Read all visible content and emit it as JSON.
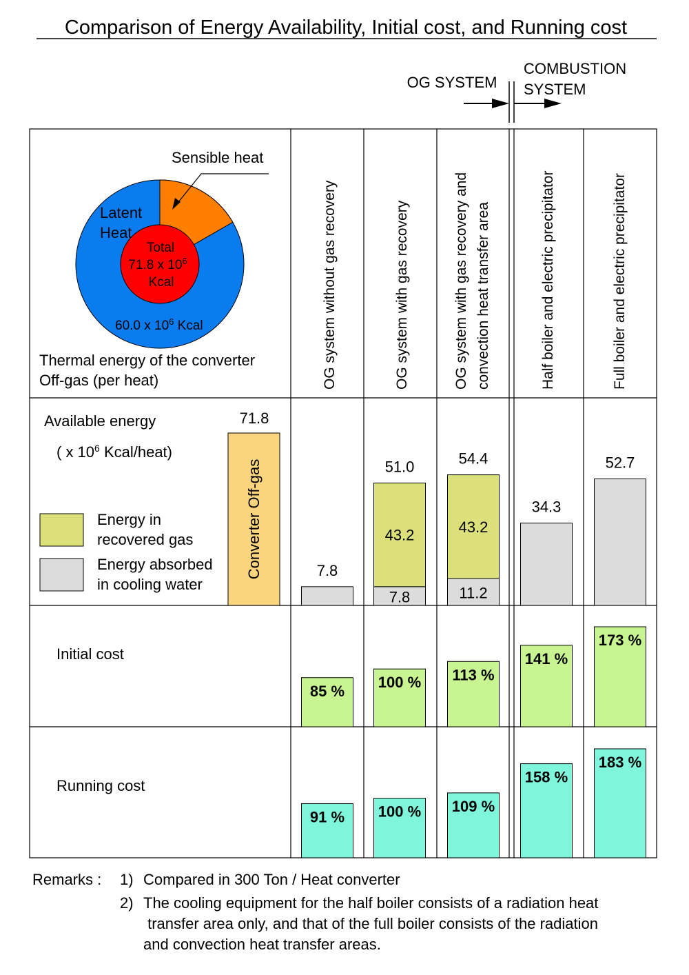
{
  "title": "Comparison of Energy Availability, Initial cost, and Running cost",
  "system_labels": {
    "og": "OG SYSTEM",
    "combustion_line1": "COMBUSTION",
    "combustion_line2": "SYSTEM"
  },
  "pie": {
    "sensible_label": "Sensible heat",
    "latent_line1": "Latent",
    "latent_line2": "Heat",
    "total_line1": "Total",
    "total_line2": "71.8 x 10",
    "total_exp": "6",
    "total_line3": "Kcal",
    "latent_value": "60.0  x 10",
    "latent_exp": "6",
    "latent_unit": " Kcal",
    "caption_line1": "Thermal energy of the converter",
    "caption_line2": "Off-gas (per heat)",
    "colors": {
      "latent": "#0b7cf0",
      "sensible": "#ff7f00",
      "total": "#ff0000"
    }
  },
  "columns": [
    "OG system without gas recovery",
    "OG system with gas recovery",
    "OG system with gas recovery and|convection heat transfer area",
    "Half boiler and electric precipitator",
    "Full boiler and electric precipitator"
  ],
  "energy_panel": {
    "label": "Available energy",
    "unit_prefix": "( x 10",
    "unit_exp": "6",
    "unit_suffix": " Kcal/heat)",
    "legend_gas_line1": "Energy in",
    "legend_gas_line2": "recovered gas",
    "legend_water_line1": "Energy absorbed",
    "legend_water_line2": "in cooling water",
    "offgas_label": "Converter  Off-gas",
    "offgas_value": "71.8",
    "colors": {
      "gas": "#dbe07a",
      "water": "#dcdcdc",
      "offgas": "#fbd47e"
    }
  },
  "initial_cost_label": "Initial cost",
  "running_cost_label": "Running cost",
  "cost_colors": {
    "initial": "#c8f591",
    "running": "#7ff5dc"
  },
  "remarks": {
    "label": "Remarks :",
    "item1_num": "1)",
    "item1": "Compared in 300 Ton / Heat converter",
    "item2_num": "2)",
    "item2_line1": "The cooling equipment for the half boiler consists of  a radiation heat",
    "item2_line2": " transfer area only, and that of the full boiler consists of the radiation",
    "item2_line3": "and convection heat transfer areas."
  },
  "chart_data": [
    {
      "type": "bar",
      "title": "Available energy",
      "ylabel": "( x 10^6 Kcal/heat)",
      "categories": [
        "OG system without gas recovery",
        "OG system with gas recovery",
        "OG system with gas recovery and convection heat transfer area",
        "Half boiler and electric precipitator",
        "Full boiler and electric precipitator"
      ],
      "series": [
        {
          "name": "Energy absorbed in cooling water",
          "values": [
            7.8,
            7.8,
            11.2,
            34.3,
            52.7
          ]
        },
        {
          "name": "Energy in recovered gas",
          "values": [
            0,
            43.2,
            43.2,
            0,
            0
          ]
        }
      ],
      "totals": [
        7.8,
        51.0,
        54.4,
        34.3,
        52.7
      ],
      "value_labels": {
        "totals": [
          "7.8",
          "51.0",
          "54.4",
          "34.3",
          "52.7"
        ],
        "water": [
          "",
          "7.8",
          "11.2",
          "",
          ""
        ],
        "gas": [
          "",
          "43.2",
          "43.2",
          "",
          ""
        ]
      },
      "reference": {
        "name": "Converter  Off-gas",
        "value": 71.8,
        "value_label": "71.8"
      },
      "ylim": [
        0,
        72
      ]
    },
    {
      "type": "bar",
      "title": "Initial cost",
      "categories": [
        "OG system without gas recovery",
        "OG system with gas recovery",
        "OG system with gas recovery and convection heat transfer area",
        "Half boiler and electric precipitator",
        "Full boiler and electric precipitator"
      ],
      "values": [
        85,
        100,
        113,
        141,
        173
      ],
      "labels": [
        "85 %",
        "100 %",
        "113 %",
        "141 %",
        "173 %"
      ],
      "ylim": [
        0,
        173
      ]
    },
    {
      "type": "bar",
      "title": "Running cost",
      "categories": [
        "OG system without gas recovery",
        "OG system with gas recovery",
        "OG system with gas recovery and convection heat transfer area",
        "Half boiler and electric precipitator",
        "Full boiler and electric precipitator"
      ],
      "values": [
        91,
        100,
        109,
        158,
        183
      ],
      "labels": [
        "91 %",
        "100 %",
        "109 %",
        "158 %",
        "183 %"
      ],
      "ylim": [
        0,
        183
      ]
    }
  ]
}
